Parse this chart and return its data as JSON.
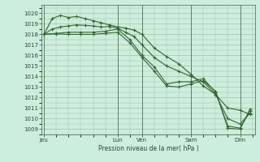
{
  "background_color": "#cceedd",
  "plot_bg_color": "#cceedd",
  "grid_color": "#aabbaa",
  "line_color": "#336633",
  "marker_color": "#336633",
  "xlabel": "Pression niveau de la mer( hPa )",
  "ylim": [
    1008.5,
    1020.8
  ],
  "yticks": [
    1009,
    1010,
    1011,
    1012,
    1013,
    1014,
    1015,
    1016,
    1017,
    1018,
    1019,
    1020
  ],
  "xtick_labels": [
    "Jeu",
    "Lun",
    "Ven",
    "Sam",
    "Dim"
  ],
  "xtick_positions": [
    0,
    3.0,
    4.0,
    6.0,
    8.0
  ],
  "xlim": [
    -0.1,
    8.6
  ],
  "line1_x": [
    0,
    0.33,
    0.67,
    1.0,
    1.33,
    1.67,
    2.0,
    2.33,
    2.67,
    3.0,
    3.33,
    3.67,
    4.0,
    4.5,
    5.0,
    5.5,
    6.0,
    6.5,
    7.0,
    7.5,
    8.0,
    8.4
  ],
  "line1_y": [
    1018.0,
    1019.5,
    1019.8,
    1019.6,
    1019.7,
    1019.5,
    1019.3,
    1019.1,
    1018.9,
    1018.7,
    1018.6,
    1018.4,
    1018.0,
    1016.7,
    1015.9,
    1015.2,
    1014.2,
    1013.1,
    1012.3,
    1011.0,
    1010.8,
    1010.4
  ],
  "line2_x": [
    0,
    0.33,
    0.67,
    1.0,
    1.33,
    1.67,
    2.0,
    2.33,
    2.67,
    3.0,
    3.33,
    3.67,
    4.0,
    4.5,
    5.0,
    5.5,
    6.0,
    6.5,
    7.0,
    7.5,
    8.0,
    8.4
  ],
  "line2_y": [
    1018.0,
    1018.5,
    1018.7,
    1018.8,
    1018.9,
    1018.85,
    1018.8,
    1018.7,
    1018.75,
    1018.6,
    1018.2,
    1017.8,
    1017.0,
    1015.8,
    1015.0,
    1014.5,
    1014.0,
    1013.5,
    1012.3,
    1010.0,
    1009.5,
    1010.5
  ],
  "line3_x": [
    0,
    0.5,
    1.0,
    1.5,
    2.0,
    2.5,
    3.0,
    3.5,
    4.0,
    4.5,
    5.0,
    5.5,
    6.0,
    6.5,
    7.0,
    7.5,
    8.0,
    8.4
  ],
  "line3_y": [
    1018.0,
    1018.1,
    1018.2,
    1018.2,
    1018.2,
    1018.3,
    1018.5,
    1017.5,
    1016.0,
    1014.9,
    1013.3,
    1013.5,
    1013.5,
    1013.8,
    1012.5,
    1009.3,
    1009.1,
    1010.7
  ],
  "line4_x": [
    0,
    0.5,
    1.0,
    1.5,
    2.0,
    2.5,
    3.0,
    3.5,
    4.0,
    4.5,
    5.0,
    5.5,
    6.0,
    6.5,
    7.0,
    7.5,
    8.0,
    8.4
  ],
  "line4_y": [
    1018.0,
    1018.05,
    1018.0,
    1018.0,
    1018.0,
    1018.1,
    1018.2,
    1017.2,
    1015.8,
    1014.5,
    1013.1,
    1013.0,
    1013.3,
    1013.6,
    1012.6,
    1009.1,
    1009.0,
    1010.9
  ],
  "vline_positions": [
    0,
    3.0,
    4.0,
    6.0,
    8.0
  ],
  "vline_color": "#557755"
}
